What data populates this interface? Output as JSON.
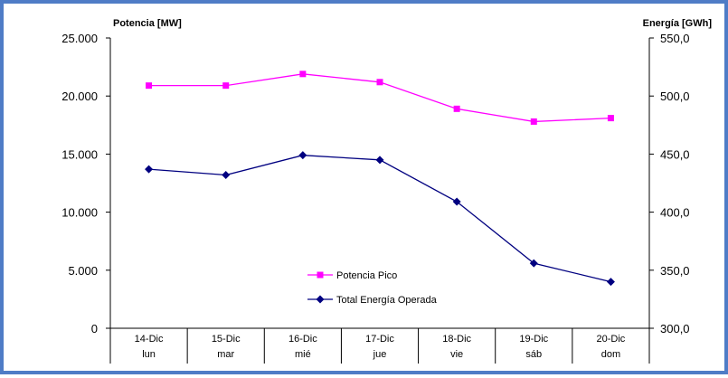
{
  "chart_data": {
    "type": "line",
    "categories": [
      {
        "date": "14-Dic",
        "day": "lun"
      },
      {
        "date": "15-Dic",
        "day": "mar"
      },
      {
        "date": "16-Dic",
        "day": "mié"
      },
      {
        "date": "17-Dic",
        "day": "jue"
      },
      {
        "date": "18-Dic",
        "day": "vie"
      },
      {
        "date": "19-Dic",
        "day": "sáb"
      },
      {
        "date": "20-Dic",
        "day": "dom"
      }
    ],
    "series": [
      {
        "name": "Potencia Pico",
        "axis": "left",
        "color": "#ff00ff",
        "marker": "square",
        "values": [
          20900,
          20900,
          21900,
          21200,
          18900,
          17800,
          18100
        ]
      },
      {
        "name": "Total Energía Operada",
        "axis": "right",
        "color": "#000080",
        "marker": "diamond",
        "values": [
          437.0,
          432.0,
          449.0,
          445.0,
          409.0,
          356.0,
          340.0
        ]
      }
    ],
    "ylabel_left": "Potencia [MW]",
    "ylabel_right": "Energía [GWh]",
    "ylim_left": [
      0,
      25000
    ],
    "ylim_right": [
      300,
      550
    ],
    "yticks_left": [
      "0",
      "5.000",
      "10.000",
      "15.000",
      "20.000",
      "25.000"
    ],
    "yticks_right": [
      "300,0",
      "350,0",
      "400,0",
      "450,0",
      "500,0",
      "550,0"
    ],
    "grid": false,
    "legend_position": "bottom-center"
  }
}
